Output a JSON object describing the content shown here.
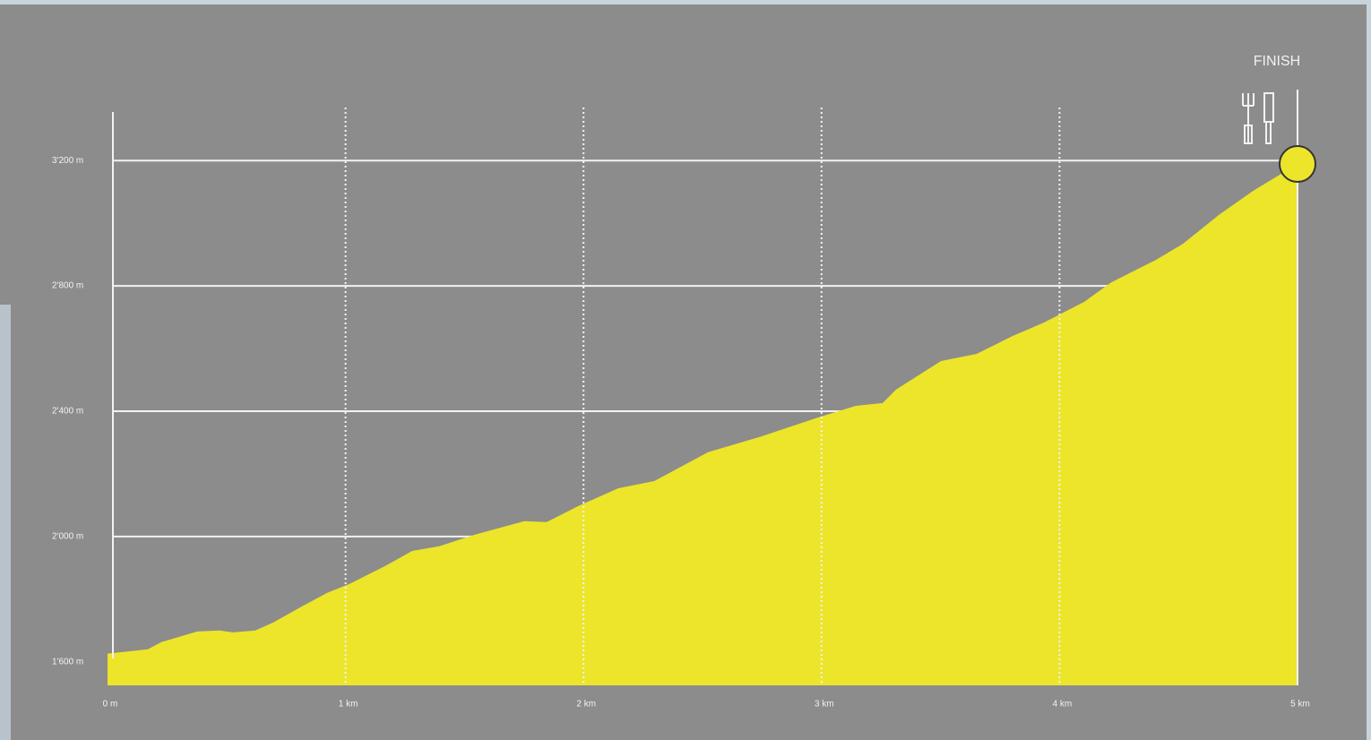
{
  "chart_data": {
    "type": "area",
    "finish_label": "FINISH",
    "x": [
      0,
      169,
      226,
      377,
      471,
      527,
      621,
      697,
      810,
      922,
      1017,
      1167,
      1280,
      1393,
      1544,
      1751,
      1845,
      1977,
      2146,
      2297,
      2523,
      2749,
      2974,
      3144,
      3257,
      3313,
      3502,
      3652,
      3803,
      3935,
      4104,
      4217,
      4405,
      4518,
      4669,
      4819,
      5000
    ],
    "values": [
      1626,
      1640,
      1663,
      1697,
      1700,
      1694,
      1700,
      1726,
      1774,
      1820,
      1849,
      1906,
      1954,
      1969,
      2006,
      2049,
      2046,
      2097,
      2154,
      2177,
      2269,
      2320,
      2377,
      2417,
      2426,
      2469,
      2560,
      2583,
      2640,
      2683,
      2749,
      2811,
      2883,
      2934,
      3026,
      3106,
      3189
    ],
    "color": "#ede52a",
    "xlim": [
      0,
      5000
    ],
    "xticks": [
      {
        "value": 0,
        "label": "0 m"
      },
      {
        "value": 1000,
        "label": "1 km"
      },
      {
        "value": 2000,
        "label": "2 km"
      },
      {
        "value": 3000,
        "label": "3 km"
      },
      {
        "value": 4000,
        "label": "4 km"
      },
      {
        "value": 5000,
        "label": "5 km"
      }
    ],
    "ylim": [
      1525,
      3355
    ],
    "yticks": [
      {
        "value": 1600,
        "label": "1'600 m"
      },
      {
        "value": 2000,
        "label": "2'000 m"
      },
      {
        "value": 2400,
        "label": "2'400 m"
      },
      {
        "value": 2800,
        "label": "2'800 m"
      },
      {
        "value": 3200,
        "label": "3'200 m"
      }
    ],
    "grid": true
  }
}
